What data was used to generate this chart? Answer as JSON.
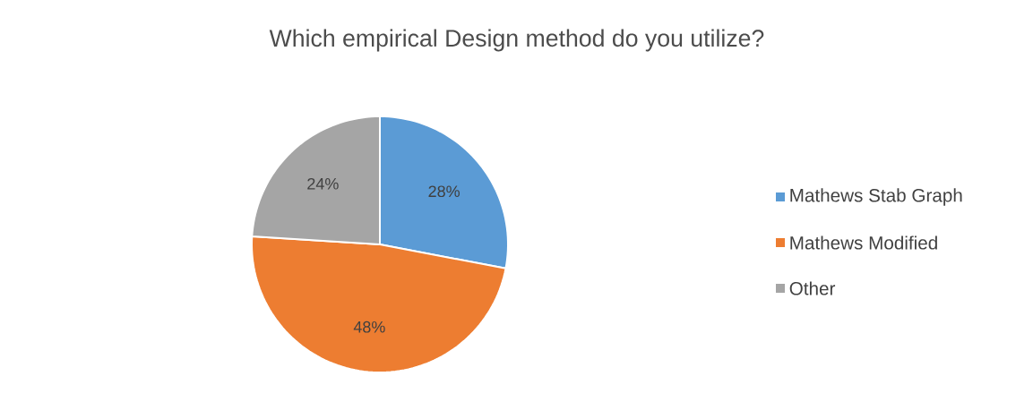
{
  "chart_data": {
    "type": "pie",
    "title": "Which empirical Design method do you utilize?",
    "categories": [
      "Mathews Stab Graph",
      "Mathews Modified",
      "Other"
    ],
    "values": [
      28,
      48,
      24
    ],
    "value_labels": [
      "28%",
      "48%",
      "24%"
    ],
    "colors": [
      "#5b9bd5",
      "#ed7d31",
      "#a5a5a5"
    ],
    "legend": "right"
  }
}
